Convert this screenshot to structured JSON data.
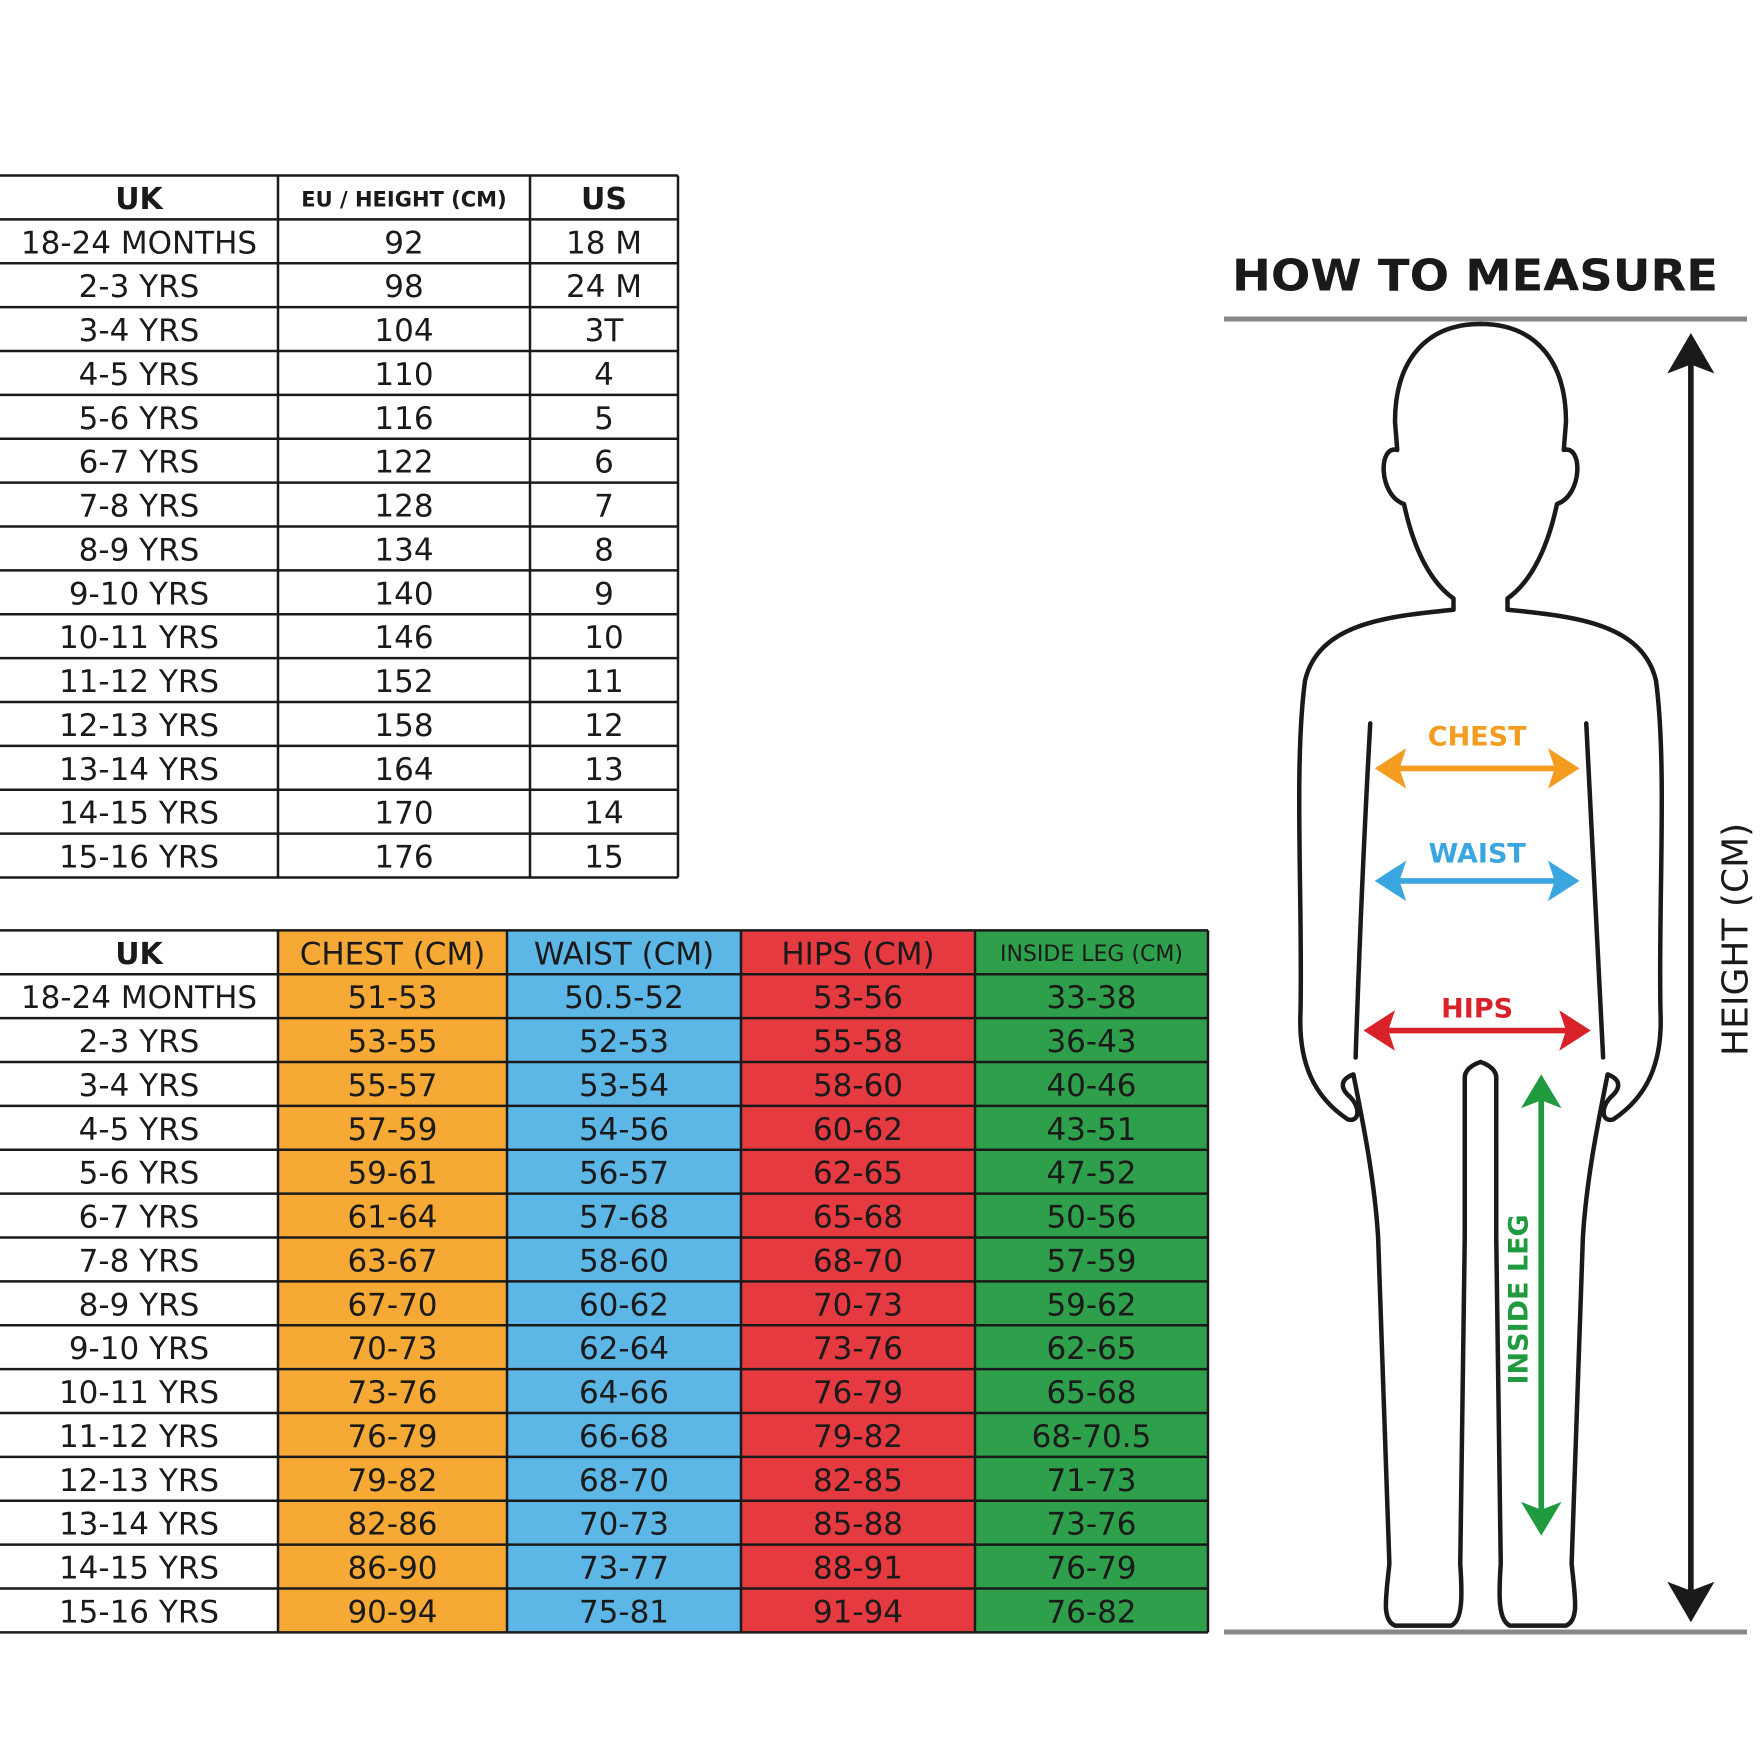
{
  "size_table": {
    "header": [
      "UK",
      "EU / HEIGHT (CM)",
      "US"
    ],
    "rows": [
      [
        "18-24 MONTHS",
        "92",
        "18 M"
      ],
      [
        "2-3 YRS",
        "98",
        "24 M"
      ],
      [
        "3-4 YRS",
        "104",
        "3T"
      ],
      [
        "4-5 YRS",
        "110",
        "4"
      ],
      [
        "5-6 YRS",
        "116",
        "5"
      ],
      [
        "6-7 YRS",
        "122",
        "6"
      ],
      [
        "7-8 YRS",
        "128",
        "7"
      ],
      [
        "8-9 YRS",
        "134",
        "8"
      ],
      [
        "9-10 YRS",
        "140",
        "9"
      ],
      [
        "10-11 YRS",
        "146",
        "10"
      ],
      [
        "11-12 YRS",
        "152",
        "11"
      ],
      [
        "12-13 YRS",
        "158",
        "12"
      ],
      [
        "13-14 YRS",
        "164",
        "13"
      ],
      [
        "14-15 YRS",
        "170",
        "14"
      ],
      [
        "15-16 YRS",
        "176",
        "15"
      ]
    ]
  },
  "measurement_table": {
    "header": [
      "UK",
      "CHEST (CM)",
      "WAIST (CM)",
      "HIPS (CM)",
      "INSIDE LEG (CM)"
    ],
    "rows": [
      [
        "18-24 MONTHS",
        "51-53",
        "50.5-52",
        "53-56",
        "33-38"
      ],
      [
        "2-3 YRS",
        "53-55",
        "52-53",
        "55-58",
        "36-43"
      ],
      [
        "3-4 YRS",
        "55-57",
        "53-54",
        "58-60",
        "40-46"
      ],
      [
        "4-5 YRS",
        "57-59",
        "54-56",
        "60-62",
        "43-51"
      ],
      [
        "5-6 YRS",
        "59-61",
        "56-57",
        "62-65",
        "47-52"
      ],
      [
        "6-7 YRS",
        "61-64",
        "57-68",
        "65-68",
        "50-56"
      ],
      [
        "7-8 YRS",
        "63-67",
        "58-60",
        "68-70",
        "57-59"
      ],
      [
        "8-9 YRS",
        "67-70",
        "60-62",
        "70-73",
        "59-62"
      ],
      [
        "9-10 YRS",
        "70-73",
        "62-64",
        "73-76",
        "62-65"
      ],
      [
        "10-11 YRS",
        "73-76",
        "64-66",
        "76-79",
        "65-68"
      ],
      [
        "11-12 YRS",
        "76-79",
        "66-68",
        "79-82",
        "68-70.5"
      ],
      [
        "12-13 YRS",
        "79-82",
        "68-70",
        "82-85",
        "71-73"
      ],
      [
        "13-14 YRS",
        "82-86",
        "70-73",
        "85-88",
        "73-76"
      ],
      [
        "14-15 YRS",
        "86-90",
        "73-77",
        "88-91",
        "76-79"
      ],
      [
        "15-16 YRS",
        "90-94",
        "75-81",
        "91-94",
        "76-82"
      ]
    ]
  },
  "diagram": {
    "title": "HOW TO MEASURE",
    "chest": "CHEST",
    "waist": "WAIST",
    "hips": "HIPS",
    "inside_leg": "INSIDE LEG",
    "height": "HEIGHT (CM)"
  }
}
